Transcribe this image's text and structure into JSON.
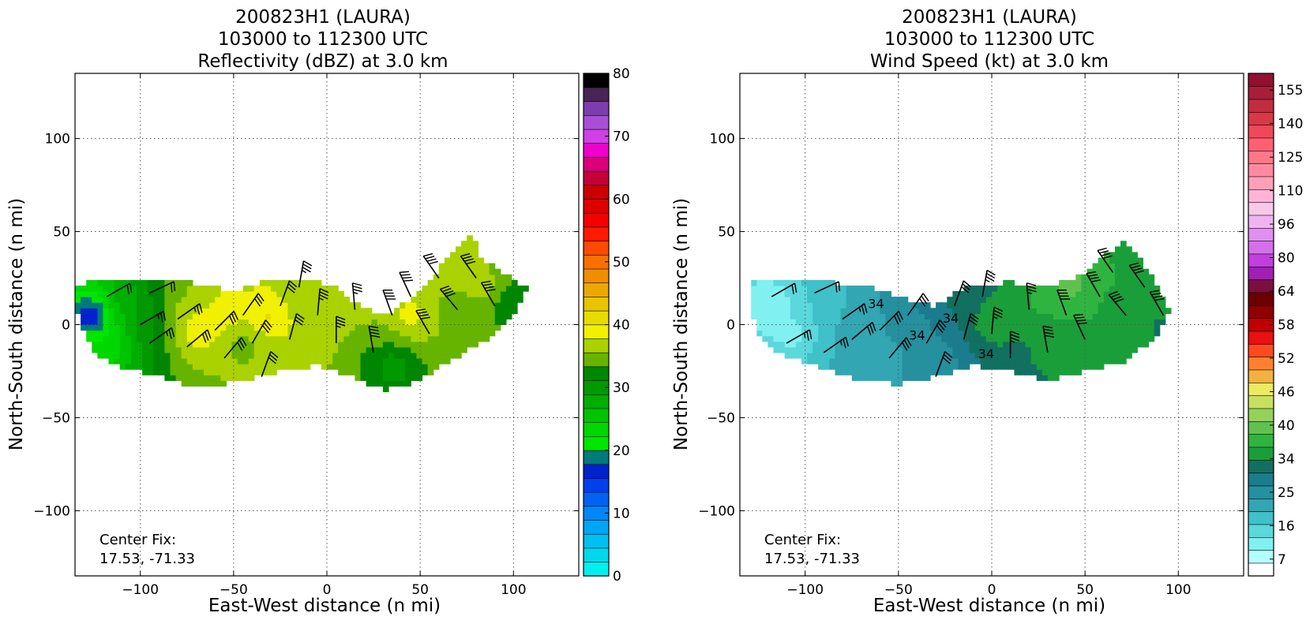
{
  "chart_data": [
    {
      "type": "heatmap",
      "title_lines": [
        "200823H1 (LAURA)",
        "103000 to 112300 UTC",
        "Reflectivity (dBZ) at 3.0 km"
      ],
      "xlabel": "East-West distance (n mi)",
      "ylabel": "North-South distance (n mi)",
      "xlim": [
        -135,
        135
      ],
      "ylim": [
        -135,
        135
      ],
      "x_ticks": [
        -100,
        -50,
        0,
        50,
        100
      ],
      "y_ticks": [
        -100,
        -50,
        0,
        50,
        100
      ],
      "grid": true,
      "annotation_lines": [
        "Center Fix:",
        "17.53, -71.33"
      ],
      "colorbar": {
        "ticks": [
          0,
          10,
          20,
          30,
          40,
          50,
          60,
          70,
          80
        ],
        "bin_colors": [
          "#00f0f0",
          "#00d8ec",
          "#00c0f0",
          "#00a6f5",
          "#0087f7",
          "#0063f3",
          "#0040ed",
          "#0022cc",
          "#007a7a",
          "#00e600",
          "#00d600",
          "#00c400",
          "#00ae00",
          "#009a00",
          "#008600",
          "#66b400",
          "#aad200",
          "#f0f000",
          "#e6dc00",
          "#e8c400",
          "#eca800",
          "#f08e00",
          "#f87000",
          "#ff4a00",
          "#ff1a00",
          "#f40000",
          "#de0000",
          "#ca0000",
          "#c4003a",
          "#dc0078",
          "#f000cc",
          "#d040e6",
          "#a84ed6",
          "#7e3cb0",
          "#4a2454",
          "#000000"
        ],
        "bin_count": 36
      },
      "field": {
        "blobs": [
          {
            "x": -110,
            "y": 12,
            "v": 28
          },
          {
            "x": -95,
            "y": 3,
            "v": 30
          },
          {
            "x": -80,
            "y": 10,
            "v": 36
          },
          {
            "x": -70,
            "y": -2,
            "v": 42
          },
          {
            "x": -55,
            "y": 6,
            "v": 40
          },
          {
            "x": -45,
            "y": -10,
            "v": 34
          },
          {
            "x": -30,
            "y": 5,
            "v": 42
          },
          {
            "x": -15,
            "y": 12,
            "v": 36
          },
          {
            "x": -5,
            "y": -5,
            "v": 38
          },
          {
            "x": 10,
            "y": 8,
            "v": 37
          },
          {
            "x": 20,
            "y": -15,
            "v": 33
          },
          {
            "x": 35,
            "y": -22,
            "v": 28
          },
          {
            "x": 45,
            "y": 5,
            "v": 40
          },
          {
            "x": 55,
            "y": 25,
            "v": 38
          },
          {
            "x": 65,
            "y": 10,
            "v": 34
          },
          {
            "x": 75,
            "y": 38,
            "v": 36
          },
          {
            "x": 85,
            "y": 20,
            "v": 37
          },
          {
            "x": 98,
            "y": 12,
            "v": 30
          },
          {
            "x": -118,
            "y": -12,
            "v": 22
          },
          {
            "x": -125,
            "y": 5,
            "v": 12
          }
        ],
        "polygon": [
          [
            -135,
            20
          ],
          [
            -120,
            25
          ],
          [
            -90,
            25
          ],
          [
            -70,
            22
          ],
          [
            -50,
            18
          ],
          [
            -30,
            25
          ],
          [
            -10,
            25
          ],
          [
            5,
            20
          ],
          [
            15,
            12
          ],
          [
            30,
            4
          ],
          [
            45,
            14
          ],
          [
            60,
            30
          ],
          [
            78,
            50
          ],
          [
            82,
            36
          ],
          [
            95,
            28
          ],
          [
            107,
            20
          ],
          [
            100,
            4
          ],
          [
            85,
            -8
          ],
          [
            65,
            -20
          ],
          [
            50,
            -30
          ],
          [
            30,
            -35
          ],
          [
            15,
            -28
          ],
          [
            -5,
            -22
          ],
          [
            -25,
            -25
          ],
          [
            -45,
            -30
          ],
          [
            -70,
            -34
          ],
          [
            -90,
            -28
          ],
          [
            -112,
            -22
          ],
          [
            -125,
            -15
          ],
          [
            -132,
            0
          ],
          [
            -135,
            10
          ]
        ]
      },
      "barbs": [
        {
          "x": -118,
          "y": 15,
          "spd": 20,
          "dir": 60
        },
        {
          "x": -95,
          "y": 17,
          "spd": 22,
          "dir": 65
        },
        {
          "x": -100,
          "y": 0,
          "spd": 25,
          "dir": 60
        },
        {
          "x": -80,
          "y": 3,
          "spd": 28,
          "dir": 55
        },
        {
          "x": -95,
          "y": -10,
          "spd": 28,
          "dir": 55
        },
        {
          "x": -75,
          "y": -12,
          "spd": 30,
          "dir": 50
        },
        {
          "x": -60,
          "y": -3,
          "spd": 30,
          "dir": 45
        },
        {
          "x": -55,
          "y": -18,
          "spd": 30,
          "dir": 40
        },
        {
          "x": -45,
          "y": 5,
          "spd": 32,
          "dir": 35
        },
        {
          "x": -40,
          "y": -10,
          "spd": 32,
          "dir": 30
        },
        {
          "x": -35,
          "y": -28,
          "spd": 32,
          "dir": 20
        },
        {
          "x": -25,
          "y": 10,
          "spd": 34,
          "dir": 20
        },
        {
          "x": -20,
          "y": -8,
          "spd": 34,
          "dir": 15
        },
        {
          "x": -15,
          "y": 20,
          "spd": 36,
          "dir": 10
        },
        {
          "x": -5,
          "y": 5,
          "spd": 36,
          "dir": 5
        },
        {
          "x": 5,
          "y": -10,
          "spd": 38,
          "dir": 0
        },
        {
          "x": 15,
          "y": 8,
          "spd": 38,
          "dir": 355
        },
        {
          "x": 25,
          "y": -15,
          "spd": 40,
          "dir": 350
        },
        {
          "x": 35,
          "y": 5,
          "spd": 40,
          "dir": 340
        },
        {
          "x": 45,
          "y": 15,
          "spd": 42,
          "dir": 335
        },
        {
          "x": 55,
          "y": -5,
          "spd": 42,
          "dir": 330
        },
        {
          "x": 60,
          "y": 25,
          "spd": 44,
          "dir": 325
        },
        {
          "x": 70,
          "y": 8,
          "spd": 44,
          "dir": 320
        },
        {
          "x": 80,
          "y": 25,
          "spd": 42,
          "dir": 325
        },
        {
          "x": 90,
          "y": 10,
          "spd": 40,
          "dir": 330
        }
      ]
    },
    {
      "type": "heatmap",
      "title_lines": [
        "200823H1 (LAURA)",
        "103000 to 112300 UTC",
        "Wind Speed (kt) at 3.0 km"
      ],
      "xlabel": "East-West distance (n mi)",
      "ylabel": "North-South distance (n mi)",
      "xlim": [
        -135,
        135
      ],
      "ylim": [
        -135,
        135
      ],
      "x_ticks": [
        -100,
        -50,
        0,
        50,
        100
      ],
      "y_ticks": [
        -100,
        -50,
        0,
        50,
        100
      ],
      "grid": true,
      "annotation_lines": [
        "Center Fix:",
        "17.53, -71.33"
      ],
      "contour_labels": [
        {
          "x": -62,
          "y": 9,
          "text": "34"
        },
        {
          "x": -40,
          "y": -8,
          "text": "34"
        },
        {
          "x": -22,
          "y": 1,
          "text": "34"
        },
        {
          "x": -3,
          "y": -18,
          "text": "34"
        }
      ],
      "colorbar": {
        "tick_values": [
          7,
          16,
          25,
          34,
          40,
          46,
          52,
          58,
          64,
          80,
          96,
          110,
          125,
          140,
          155
        ],
        "tick_labels": [
          "7",
          "16",
          "25",
          "34",
          "40",
          "46",
          "52",
          "58",
          "64",
          "80",
          "96",
          "110",
          "125",
          "140",
          "155"
        ],
        "bin_colors": [
          "#ffffff",
          "#b4ffff",
          "#80f0f0",
          "#5ad8dc",
          "#40c0c8",
          "#32a6b2",
          "#25909e",
          "#1a7c8c",
          "#117060",
          "#1a9e3a",
          "#30b440",
          "#60c050",
          "#94d25a",
          "#c8e060",
          "#ecea60",
          "#f4b040",
          "#ff8030",
          "#ff4a20",
          "#e81010",
          "#c00000",
          "#900000",
          "#6c0000",
          "#7a1040",
          "#a020b4",
          "#c040dc",
          "#d470ea",
          "#e090f0",
          "#eeb4f0",
          "#f8c8e8",
          "#ffb4d8",
          "#ffa0b8",
          "#ff8aa0",
          "#ff7888",
          "#ff6070",
          "#f04858",
          "#d83848",
          "#c02c40",
          "#a81e38",
          "#901030"
        ],
        "bin_count": 39
      },
      "field": {
        "blobs": [
          {
            "x": -118,
            "y": 10,
            "v": 12
          },
          {
            "x": -105,
            "y": -5,
            "v": 14
          },
          {
            "x": -90,
            "y": 12,
            "v": 20
          },
          {
            "x": -80,
            "y": -5,
            "v": 24
          },
          {
            "x": -65,
            "y": 5,
            "v": 26
          },
          {
            "x": -50,
            "y": -10,
            "v": 26
          },
          {
            "x": -40,
            "y": 8,
            "v": 30
          },
          {
            "x": -30,
            "y": -20,
            "v": 27
          },
          {
            "x": -15,
            "y": 15,
            "v": 36
          },
          {
            "x": 0,
            "y": 0,
            "v": 38
          },
          {
            "x": 15,
            "y": -12,
            "v": 35
          },
          {
            "x": 25,
            "y": 10,
            "v": 38
          },
          {
            "x": 40,
            "y": -10,
            "v": 37
          },
          {
            "x": 50,
            "y": 10,
            "v": 38
          },
          {
            "x": 42,
            "y": 22,
            "v": 44
          },
          {
            "x": 60,
            "y": 25,
            "v": 38
          },
          {
            "x": 70,
            "y": 5,
            "v": 36
          },
          {
            "x": 80,
            "y": 20,
            "v": 36
          },
          {
            "x": 90,
            "y": 0,
            "v": 35
          },
          {
            "x": -60,
            "y": -25,
            "v": 24
          }
        ],
        "polygon": [
          [
            -128,
            25
          ],
          [
            -100,
            23
          ],
          [
            -70,
            22
          ],
          [
            -50,
            15
          ],
          [
            -30,
            10
          ],
          [
            -15,
            20
          ],
          [
            10,
            23
          ],
          [
            30,
            20
          ],
          [
            45,
            25
          ],
          [
            58,
            35
          ],
          [
            72,
            45
          ],
          [
            80,
            35
          ],
          [
            88,
            22
          ],
          [
            95,
            8
          ],
          [
            90,
            -5
          ],
          [
            70,
            -20
          ],
          [
            50,
            -25
          ],
          [
            30,
            -30
          ],
          [
            10,
            -25
          ],
          [
            -10,
            -22
          ],
          [
            -30,
            -28
          ],
          [
            -50,
            -32
          ],
          [
            -70,
            -30
          ],
          [
            -95,
            -22
          ],
          [
            -115,
            -15
          ],
          [
            -125,
            -5
          ],
          [
            -130,
            10
          ]
        ]
      },
      "barbs": [
        {
          "x": -118,
          "y": 15,
          "spd": 20,
          "dir": 60
        },
        {
          "x": -95,
          "y": 17,
          "spd": 22,
          "dir": 65
        },
        {
          "x": -110,
          "y": -10,
          "spd": 25,
          "dir": 60
        },
        {
          "x": -80,
          "y": 3,
          "spd": 28,
          "dir": 55
        },
        {
          "x": -90,
          "y": -15,
          "spd": 28,
          "dir": 55
        },
        {
          "x": -75,
          "y": -8,
          "spd": 30,
          "dir": 50
        },
        {
          "x": -60,
          "y": -3,
          "spd": 30,
          "dir": 45
        },
        {
          "x": -55,
          "y": -18,
          "spd": 30,
          "dir": 40
        },
        {
          "x": -45,
          "y": 5,
          "spd": 32,
          "dir": 35
        },
        {
          "x": -35,
          "y": -10,
          "spd": 32,
          "dir": 30
        },
        {
          "x": -30,
          "y": -28,
          "spd": 32,
          "dir": 20
        },
        {
          "x": -20,
          "y": 10,
          "spd": 34,
          "dir": 20
        },
        {
          "x": -15,
          "y": -8,
          "spd": 34,
          "dir": 15
        },
        {
          "x": -5,
          "y": 15,
          "spd": 36,
          "dir": 10
        },
        {
          "x": 0,
          "y": -5,
          "spd": 36,
          "dir": 5
        },
        {
          "x": 10,
          "y": -18,
          "spd": 38,
          "dir": 0
        },
        {
          "x": 20,
          "y": 8,
          "spd": 38,
          "dir": 355
        },
        {
          "x": 30,
          "y": -15,
          "spd": 40,
          "dir": 350
        },
        {
          "x": 40,
          "y": 5,
          "spd": 40,
          "dir": 340
        },
        {
          "x": 50,
          "y": -8,
          "spd": 42,
          "dir": 335
        },
        {
          "x": 58,
          "y": 15,
          "spd": 42,
          "dir": 330
        },
        {
          "x": 65,
          "y": 28,
          "spd": 44,
          "dir": 325
        },
        {
          "x": 72,
          "y": 5,
          "spd": 44,
          "dir": 320
        },
        {
          "x": 82,
          "y": 20,
          "spd": 42,
          "dir": 325
        },
        {
          "x": 92,
          "y": 5,
          "spd": 40,
          "dir": 330
        }
      ]
    }
  ]
}
